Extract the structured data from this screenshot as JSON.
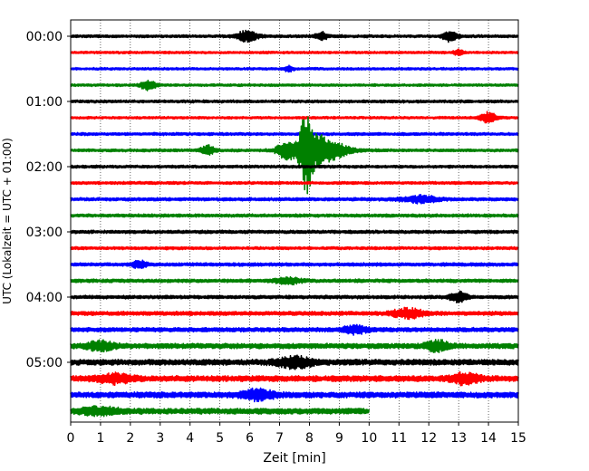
{
  "chart_data": {
    "type": "line",
    "title": "",
    "xlabel": "Zeit  [min]",
    "ylabel": "UTC (Lokalzeit = UTC + 01:00)",
    "xlim": [
      0,
      15
    ],
    "x_ticks": [
      "0",
      "1",
      "2",
      "3",
      "4",
      "5",
      "6",
      "7",
      "8",
      "9",
      "10",
      "11",
      "12",
      "13",
      "14",
      "15"
    ],
    "y_ticks": [
      "00:00",
      "01:00",
      "02:00",
      "03:00",
      "04:00",
      "05:00"
    ],
    "grid": "vertical dotted lines at each minute",
    "trace_interval_min": 15,
    "trace_colors": [
      "#000000",
      "#ff0000",
      "#0000ff",
      "#008000"
    ],
    "traces": [
      {
        "start": "00:00",
        "color": "#000000",
        "end_min": 15,
        "noise": 0.12,
        "events": [
          {
            "t": 5.9,
            "a": 0.55,
            "w": 0.35
          },
          {
            "t": 8.4,
            "a": 0.4,
            "w": 0.2
          },
          {
            "t": 12.7,
            "a": 0.55,
            "w": 0.25
          }
        ]
      },
      {
        "start": "00:15",
        "color": "#ff0000",
        "end_min": 15,
        "noise": 0.1,
        "events": [
          {
            "t": 13.0,
            "a": 0.3,
            "w": 0.15
          }
        ]
      },
      {
        "start": "00:30",
        "color": "#0000ff",
        "end_min": 15,
        "noise": 0.1,
        "events": [
          {
            "t": 7.3,
            "a": 0.3,
            "w": 0.15
          }
        ]
      },
      {
        "start": "00:45",
        "color": "#008000",
        "end_min": 15,
        "noise": 0.1,
        "events": [
          {
            "t": 2.6,
            "a": 0.55,
            "w": 0.25
          }
        ]
      },
      {
        "start": "01:00",
        "color": "#000000",
        "end_min": 15,
        "noise": 0.12,
        "events": []
      },
      {
        "start": "01:15",
        "color": "#ff0000",
        "end_min": 15,
        "noise": 0.1,
        "events": [
          {
            "t": 14.0,
            "a": 0.6,
            "w": 0.25
          }
        ]
      },
      {
        "start": "01:30",
        "color": "#0000ff",
        "end_min": 15,
        "noise": 0.12,
        "events": []
      },
      {
        "start": "01:45",
        "color": "#008000",
        "end_min": 15,
        "noise": 0.12,
        "events": [
          {
            "t": 4.6,
            "a": 0.5,
            "w": 0.25
          },
          {
            "t": 7.9,
            "a": 3.6,
            "w": 0.2
          },
          {
            "t": 8.3,
            "a": 1.6,
            "w": 0.8
          },
          {
            "t": 7.2,
            "a": 0.7,
            "w": 0.3
          }
        ]
      },
      {
        "start": "02:00",
        "color": "#000000",
        "end_min": 15,
        "noise": 0.12,
        "events": []
      },
      {
        "start": "02:15",
        "color": "#ff0000",
        "end_min": 15,
        "noise": 0.12,
        "events": []
      },
      {
        "start": "02:30",
        "color": "#0000ff",
        "end_min": 15,
        "noise": 0.14,
        "events": [
          {
            "t": 11.7,
            "a": 0.35,
            "w": 0.6
          }
        ]
      },
      {
        "start": "02:45",
        "color": "#008000",
        "end_min": 15,
        "noise": 0.14,
        "events": []
      },
      {
        "start": "03:00",
        "color": "#000000",
        "end_min": 15,
        "noise": 0.14,
        "events": []
      },
      {
        "start": "03:15",
        "color": "#ff0000",
        "end_min": 15,
        "noise": 0.12,
        "events": []
      },
      {
        "start": "03:30",
        "color": "#0000ff",
        "end_min": 15,
        "noise": 0.15,
        "events": [
          {
            "t": 2.3,
            "a": 0.45,
            "w": 0.2
          }
        ]
      },
      {
        "start": "03:45",
        "color": "#008000",
        "end_min": 15,
        "noise": 0.15,
        "events": [
          {
            "t": 7.3,
            "a": 0.35,
            "w": 0.4
          }
        ]
      },
      {
        "start": "04:00",
        "color": "#000000",
        "end_min": 15,
        "noise": 0.15,
        "events": [
          {
            "t": 13.0,
            "a": 0.5,
            "w": 0.3
          }
        ]
      },
      {
        "start": "04:15",
        "color": "#ff0000",
        "end_min": 15,
        "noise": 0.18,
        "events": [
          {
            "t": 11.3,
            "a": 0.5,
            "w": 0.5
          }
        ]
      },
      {
        "start": "04:30",
        "color": "#0000ff",
        "end_min": 15,
        "noise": 0.2,
        "events": [
          {
            "t": 9.5,
            "a": 0.4,
            "w": 0.4
          }
        ]
      },
      {
        "start": "04:45",
        "color": "#008000",
        "end_min": 15,
        "noise": 0.25,
        "events": [
          {
            "t": 12.3,
            "a": 0.5,
            "w": 0.4
          },
          {
            "t": 1.0,
            "a": 0.4,
            "w": 0.5
          }
        ]
      },
      {
        "start": "05:00",
        "color": "#000000",
        "end_min": 15,
        "noise": 0.28,
        "events": [
          {
            "t": 7.5,
            "a": 0.5,
            "w": 0.6
          }
        ]
      },
      {
        "start": "05:15",
        "color": "#ff0000",
        "end_min": 15,
        "noise": 0.28,
        "events": [
          {
            "t": 13.2,
            "a": 0.5,
            "w": 0.5
          },
          {
            "t": 1.5,
            "a": 0.4,
            "w": 0.6
          }
        ]
      },
      {
        "start": "05:30",
        "color": "#0000ff",
        "end_min": 15,
        "noise": 0.28,
        "events": [
          {
            "t": 6.3,
            "a": 0.5,
            "w": 0.5
          }
        ]
      },
      {
        "start": "05:45",
        "color": "#008000",
        "end_min": 10,
        "noise": 0.28,
        "events": [
          {
            "t": 1.0,
            "a": 0.35,
            "w": 0.6
          }
        ]
      }
    ]
  }
}
